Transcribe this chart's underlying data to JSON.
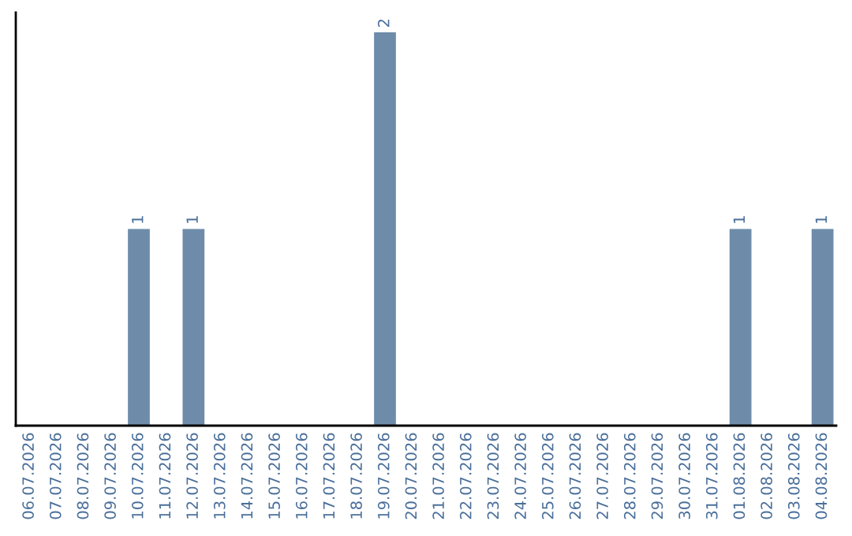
{
  "chart_data": {
    "type": "bar",
    "categories": [
      "06.07.2026",
      "07.07.2026",
      "08.07.2026",
      "09.07.2026",
      "10.07.2026",
      "11.07.2026",
      "12.07.2026",
      "13.07.2026",
      "14.07.2026",
      "15.07.2026",
      "16.07.2026",
      "17.07.2026",
      "18.07.2026",
      "19.07.2026",
      "20.07.2026",
      "21.07.2026",
      "22.07.2026",
      "23.07.2026",
      "24.07.2026",
      "25.07.2026",
      "26.07.2026",
      "27.07.2026",
      "28.07.2026",
      "29.07.2026",
      "30.07.2026",
      "31.07.2026",
      "01.08.2026",
      "02.08.2026",
      "03.08.2026",
      "04.08.2026"
    ],
    "values": [
      0,
      0,
      0,
      0,
      1,
      0,
      1,
      0,
      0,
      0,
      0,
      0,
      0,
      2,
      0,
      0,
      0,
      0,
      0,
      0,
      0,
      0,
      0,
      0,
      0,
      0,
      1,
      0,
      0,
      1
    ],
    "value_labels": [
      null,
      null,
      null,
      null,
      "1",
      null,
      "1",
      null,
      null,
      null,
      null,
      null,
      null,
      "2",
      null,
      null,
      null,
      null,
      null,
      null,
      null,
      null,
      null,
      null,
      null,
      null,
      "1",
      null,
      null,
      "1"
    ],
    "color": "#6e8caa",
    "ylim": [
      0,
      2.1
    ],
    "tick_labels": "x",
    "grid": false,
    "legend": false
  }
}
